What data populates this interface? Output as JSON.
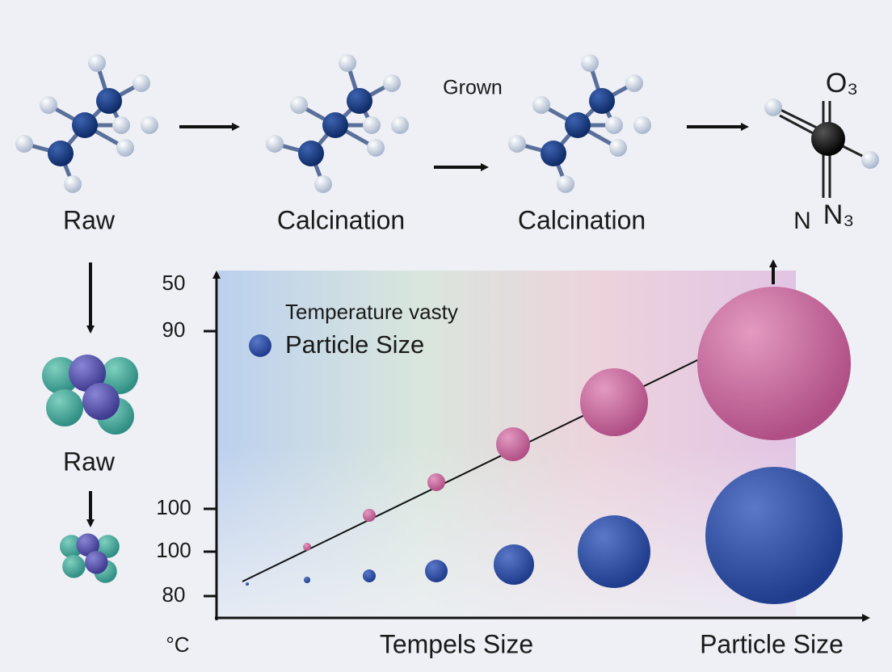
{
  "steps": [
    {
      "label": "Raw"
    },
    {
      "label": "Calcination"
    },
    {
      "label": "Calcination"
    }
  ],
  "annotation": "Grown",
  "product": {
    "top": "O₃",
    "bottom_left": "N",
    "bottom_right": "N₃"
  },
  "side_step": {
    "label": "Raw"
  },
  "axis": {
    "y_labels": [
      "50",
      "90",
      "100",
      "100",
      "80"
    ],
    "unit": "°C",
    "x_label": "Tempels Size",
    "x_label_right": "Particle Size"
  },
  "legend": {
    "title": "Temperature vasty",
    "item": "Particle Size"
  }
}
